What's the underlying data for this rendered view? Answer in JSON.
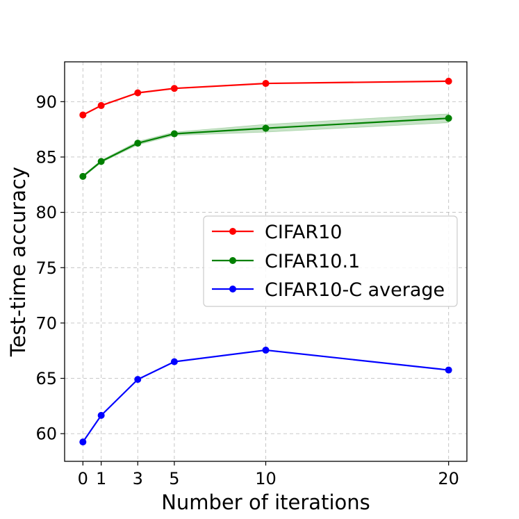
{
  "chart_data": {
    "type": "line",
    "title": "",
    "xlabel": "Number of iterations",
    "ylabel": "Test-time accuracy",
    "x": [
      0,
      1,
      3,
      5,
      10,
      20
    ],
    "xticks": [
      0,
      1,
      3,
      5,
      10,
      20
    ],
    "xtick_labels": [
      "0",
      "1",
      "3",
      "5",
      "10",
      "20"
    ],
    "yticks": [
      60,
      65,
      70,
      75,
      80,
      85,
      90
    ],
    "ytick_labels": [
      "60",
      "65",
      "70",
      "75",
      "80",
      "85",
      "90"
    ],
    "xlim": [
      -1,
      21
    ],
    "ylim": [
      57.5,
      93.6
    ],
    "grid": true,
    "legend_position": "center-right",
    "series": [
      {
        "name": "CIFAR10",
        "color": "#ff0000",
        "values": [
          88.8,
          89.65,
          90.8,
          91.2,
          91.65,
          91.85
        ]
      },
      {
        "name": "CIFAR10.1",
        "color": "#008000",
        "values": [
          83.25,
          84.6,
          86.25,
          87.1,
          87.6,
          88.5
        ],
        "band_lower": [
          83.15,
          84.5,
          86.1,
          86.95,
          87.25,
          88.1
        ],
        "band_upper": [
          83.35,
          84.7,
          86.4,
          87.25,
          87.95,
          88.9
        ]
      },
      {
        "name": "CIFAR10-C average",
        "color": "#0000ff",
        "values": [
          59.25,
          61.65,
          64.9,
          66.5,
          67.55,
          65.75
        ]
      }
    ]
  }
}
